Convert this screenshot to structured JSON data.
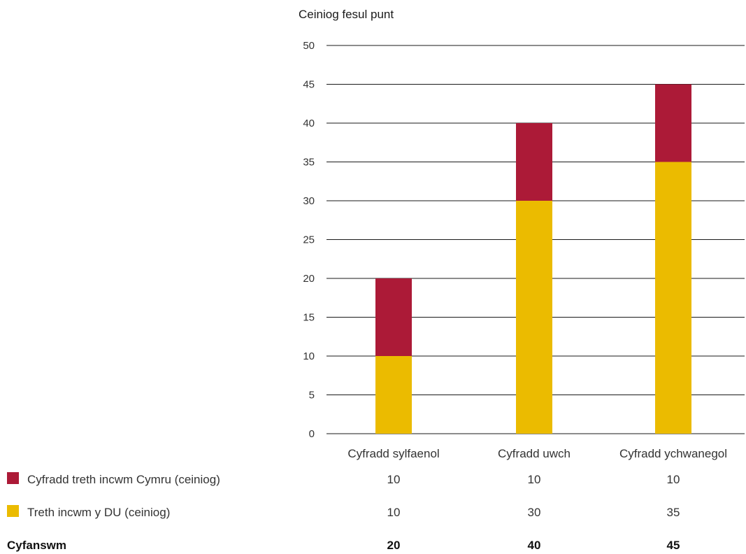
{
  "chart_data": {
    "type": "bar",
    "stacked": true,
    "ylabel": "Ceiniog fesul punt",
    "ylim": [
      0,
      50
    ],
    "yticks": [
      0,
      5,
      10,
      15,
      20,
      25,
      30,
      35,
      40,
      45,
      50
    ],
    "grid": true,
    "categories": [
      "Cyfradd sylfaenol",
      "Cyfradd uwch",
      "Cyfradd ychwanegol"
    ],
    "series": [
      {
        "name": "Treth incwm y DU (ceiniog)",
        "color": "#EBBB00",
        "values": [
          10,
          30,
          35
        ]
      },
      {
        "name": "Cyfradd treth incwm Cymru (ceiniog)",
        "color": "#AC1A37",
        "values": [
          10,
          10,
          10
        ]
      }
    ],
    "table": {
      "rows": [
        {
          "label": "Cyfradd treth incwm Cymru (ceiniog)",
          "color": "#AC1A37",
          "values": [
            "10",
            "10",
            "10"
          ],
          "bold": false
        },
        {
          "label": "Treth incwm y DU (ceiniog)",
          "color": "#EBBB00",
          "values": [
            "10",
            "30",
            "35"
          ],
          "bold": false
        },
        {
          "label": "Cyfanswm",
          "color": null,
          "values": [
            "20",
            "40",
            "45"
          ],
          "bold": true
        }
      ]
    }
  }
}
